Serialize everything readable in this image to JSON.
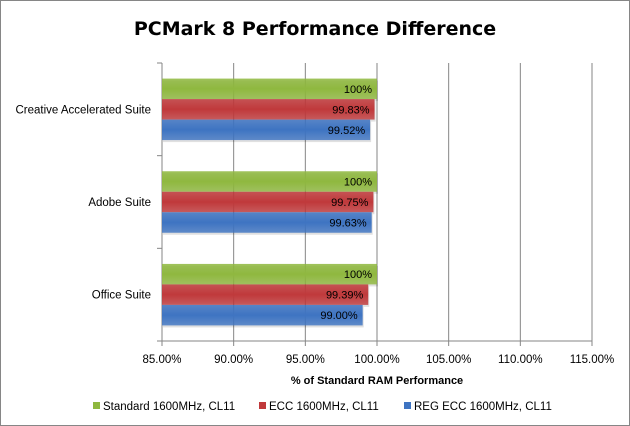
{
  "chart_data": {
    "type": "bar",
    "orientation": "horizontal",
    "title": "PCMark 8 Performance Difference",
    "xlabel": "% of Standard RAM Performance",
    "ylabel": "",
    "xlim": [
      85,
      115
    ],
    "xticks": [
      85,
      90,
      95,
      100,
      105,
      110,
      115
    ],
    "xtick_labels": [
      "85.00%",
      "90.00%",
      "95.00%",
      "100.00%",
      "105.00%",
      "110.00%",
      "115.00%"
    ],
    "categories": [
      "Creative Accelerated Suite",
      "Adobe Suite",
      "Office Suite"
    ],
    "series": [
      {
        "name": "Standard 1600MHz, CL11",
        "color": "#8fb83f",
        "values": [
          100,
          100,
          100
        ],
        "labels": [
          "100%",
          "100%",
          "100%"
        ]
      },
      {
        "name": "ECC 1600MHz, CL11",
        "color": "#c0393b",
        "values": [
          99.83,
          99.75,
          99.39
        ],
        "labels": [
          "99.83%",
          "99.75%",
          "99.39%"
        ]
      },
      {
        "name": "REG ECC 1600MHz, CL11",
        "color": "#3e74c2",
        "values": [
          99.52,
          99.63,
          99.0
        ],
        "labels": [
          "99.52%",
          "99.63%",
          "99.00%"
        ]
      }
    ],
    "grid": "vertical",
    "legend": "bottom"
  }
}
